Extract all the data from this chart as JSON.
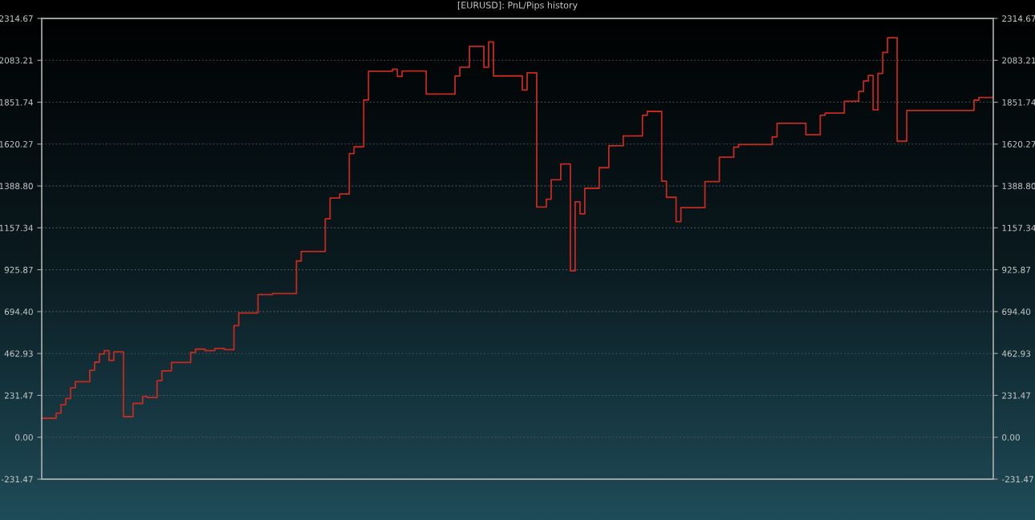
{
  "chart_data": {
    "type": "step",
    "title": "[EURUSD]: PnL/Pips history",
    "categories": [
      null,
      null,
      null,
      null,
      null,
      null,
      null,
      null,
      null,
      null,
      null,
      null,
      null,
      null,
      null,
      null,
      null,
      null,
      null,
      null,
      null,
      null,
      null,
      null,
      null,
      null,
      null,
      null,
      null,
      null,
      null,
      null,
      null,
      null,
      null,
      null,
      null,
      null,
      null,
      null,
      null,
      null,
      null,
      null,
      null,
      null,
      null,
      null,
      null,
      null,
      null,
      null,
      null,
      null,
      null,
      null,
      null,
      null,
      null,
      null,
      null,
      null,
      null,
      null,
      null,
      null,
      null,
      null,
      null,
      null,
      null,
      null,
      null,
      null,
      null,
      null,
      null,
      null,
      null,
      null,
      null,
      null,
      null,
      null,
      null,
      null,
      null,
      null,
      null,
      null,
      null,
      null,
      null,
      null,
      null,
      null,
      null,
      null,
      null,
      null,
      null,
      null,
      null,
      null,
      null,
      null,
      null,
      null,
      null,
      null,
      null,
      null,
      null,
      null,
      null,
      null,
      null,
      null,
      null,
      null,
      null,
      null,
      null,
      null,
      null,
      null,
      null,
      null,
      null,
      null,
      null,
      null,
      null,
      null,
      null,
      null,
      null,
      null,
      null,
      null,
      null,
      null,
      null,
      null,
      null,
      null,
      null,
      null,
      null,
      null,
      null,
      null,
      null,
      null,
      null,
      null,
      null,
      null,
      null,
      null,
      null,
      null,
      null,
      null,
      null,
      null,
      null,
      null,
      null,
      null,
      null,
      null,
      null,
      null,
      null,
      null,
      null,
      null,
      null,
      null,
      null,
      null,
      null,
      null,
      null,
      null,
      null,
      null,
      null,
      null,
      null,
      null,
      null,
      null,
      null,
      null,
      null,
      null,
      null
    ],
    "series": [
      {
        "color": "#c42a1f",
        "values": [
          105,
          105,
          105,
          133,
          180,
          214,
          273,
          307,
          307,
          307,
          370,
          415,
          460,
          479,
          425,
          472,
          472,
          114,
          114,
          187,
          187,
          224,
          220,
          220,
          313,
          367,
          367,
          413,
          413,
          413,
          413,
          469,
          487,
          487,
          479,
          479,
          491,
          491,
          484,
          484,
          617,
          687,
          687,
          687,
          687,
          789,
          789,
          789,
          794,
          794,
          794,
          794,
          794,
          974,
          1027,
          1027,
          1027,
          1027,
          1027,
          1207,
          1322,
          1322,
          1344,
          1344,
          1568,
          1605,
          1605,
          1864,
          2023,
          2023,
          2023,
          2023,
          2023,
          2034,
          1994,
          2024,
          2024,
          2024,
          2024,
          2024,
          1897,
          1897,
          1897,
          1897,
          1897,
          1897,
          1996,
          2045,
          2045,
          2160,
          2160,
          2160,
          2045,
          2185,
          1997,
          1997,
          1997,
          1997,
          1997,
          1997,
          1919,
          2014,
          2014,
          1272,
          1272,
          1316,
          1423,
          1423,
          1510,
          1510,
          919,
          1301,
          1235,
          1376,
          1376,
          1376,
          1490,
          1490,
          1611,
          1611,
          1611,
          1665,
          1665,
          1665,
          1665,
          1779,
          1801,
          1801,
          1801,
          1415,
          1326,
          1326,
          1192,
          1269,
          1269,
          1269,
          1269,
          1269,
          1413,
          1413,
          1413,
          1548,
          1548,
          1548,
          1603,
          1618,
          1618,
          1618,
          1618,
          1618,
          1618,
          1618,
          1660,
          1735,
          1735,
          1735,
          1735,
          1735,
          1735,
          1672,
          1672,
          1672,
          1779,
          1792,
          1792,
          1792,
          1792,
          1857,
          1857,
          1857,
          1911,
          1969,
          2000,
          1809,
          2011,
          2127,
          2208,
          2208,
          1636,
          1636,
          1806,
          1806,
          1806,
          1806,
          1806,
          1806,
          1806,
          1806,
          1806,
          1806,
          1806,
          1806,
          1806,
          1806,
          1863,
          1878,
          1878,
          1878,
          1878
        ]
      }
    ],
    "ylim": [
      -231.47,
      2314.67
    ],
    "yticks": [
      -231.47,
      {
        "value": 0,
        "label": "0.00"
      },
      231.47,
      462.93,
      {
        "value": 694.4,
        "label": "694.40"
      },
      925.87,
      1157.34,
      {
        "value": 1388.8,
        "label": "1388.80"
      },
      1620.27,
      1851.74,
      2083.21,
      2314.67
    ],
    "y2lim": [
      -231.47,
      2314.67
    ],
    "y2ticks": [
      -231.47,
      {
        "value": 0,
        "label": "0.00"
      },
      231.47,
      462.93,
      {
        "value": 694.4,
        "label": "694.40"
      },
      925.87,
      1157.34,
      {
        "value": 1388.8,
        "label": "1388.80"
      },
      1620.27,
      1851.74,
      2083.21,
      2314.67
    ],
    "grid": "y",
    "tick_labels": "y",
    "line_style": "solid"
  }
}
